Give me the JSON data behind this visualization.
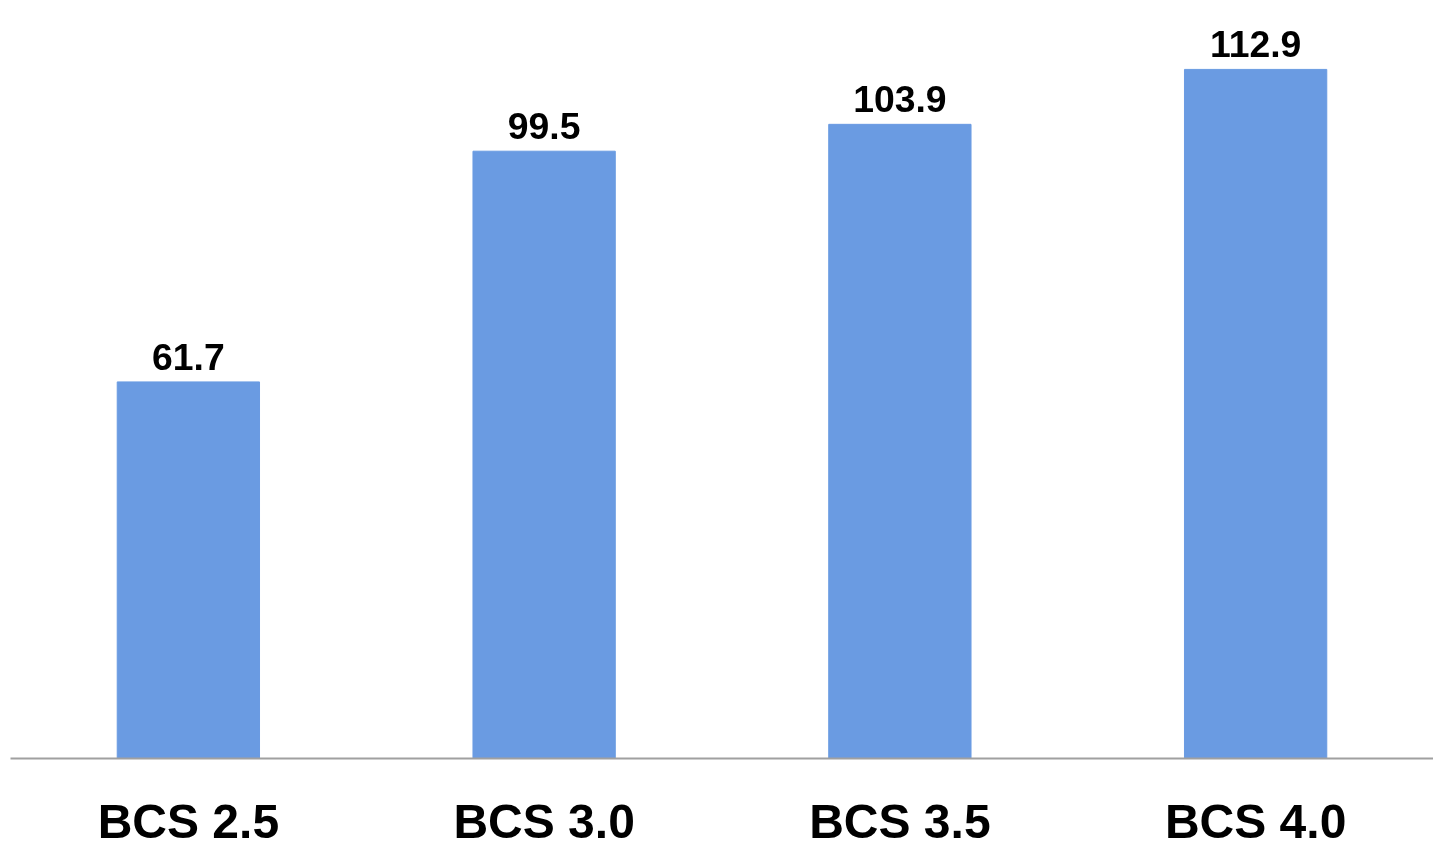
{
  "chart_data": {
    "type": "bar",
    "categories": [
      "BCS 2.5",
      "BCS 3.0",
      "BCS 3.5",
      "BCS 4.0"
    ],
    "values": [
      61.7,
      99.5,
      103.9,
      112.9
    ],
    "color": "#6a9be2",
    "data_labels": true,
    "grid": false,
    "tick_labels": "x"
  }
}
